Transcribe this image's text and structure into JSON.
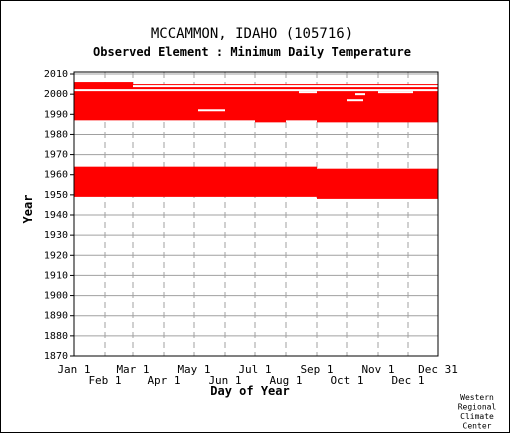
{
  "chart_data": {
    "type": "bar",
    "title": "MCCAMMON, IDAHO    (105716)",
    "subtitle": "Observed Element : Minimum Daily Temperature",
    "xlabel": "Day of Year",
    "ylabel": "Year",
    "ylim": [
      1870,
      2011
    ],
    "y_ticks": [
      1870,
      1880,
      1890,
      1900,
      1910,
      1920,
      1930,
      1940,
      1950,
      1960,
      1970,
      1980,
      1990,
      2000,
      2010
    ],
    "x_ticks_top_row": [
      {
        "label": "Jan 1",
        "day": 1
      },
      {
        "label": "Mar 1",
        "day": 60
      },
      {
        "label": "May 1",
        "day": 121
      },
      {
        "label": "Jul 1",
        "day": 182
      },
      {
        "label": "Sep 1",
        "day": 244
      },
      {
        "label": "Nov 1",
        "day": 305
      },
      {
        "label": "Dec 31",
        "day": 365
      }
    ],
    "x_ticks_bottom_row": [
      {
        "label": "Feb 1",
        "day": 32
      },
      {
        "label": "Apr 1",
        "day": 91
      },
      {
        "label": "Jun 1",
        "day": 152
      },
      {
        "label": "Aug 1",
        "day": 213
      },
      {
        "label": "Oct 1",
        "day": 274
      },
      {
        "label": "Dec 1",
        "day": 335
      }
    ],
    "grid": true,
    "data_color": "#ff0000",
    "coverage_segments": [
      {
        "start_day": 1,
        "end_day": 32,
        "from_year": 1987,
        "to_year": 2006
      },
      {
        "start_day": 32,
        "end_day": 60,
        "from_year": 1987,
        "to_year": 2006
      },
      {
        "start_day": 60,
        "end_day": 121,
        "from_year": 1987,
        "to_year": 2005
      },
      {
        "start_day": 121,
        "end_day": 152,
        "from_year": 1987,
        "to_year": 2005
      },
      {
        "start_day": 152,
        "end_day": 182,
        "from_year": 1987,
        "to_year": 2005
      },
      {
        "start_day": 182,
        "end_day": 213,
        "from_year": 1986,
        "to_year": 2005
      },
      {
        "start_day": 213,
        "end_day": 244,
        "from_year": 1987,
        "to_year": 2005
      },
      {
        "start_day": 244,
        "end_day": 274,
        "from_year": 1986,
        "to_year": 2005
      },
      {
        "start_day": 274,
        "end_day": 305,
        "from_year": 1986,
        "to_year": 2005
      },
      {
        "start_day": 305,
        "end_day": 335,
        "from_year": 1986,
        "to_year": 2005
      },
      {
        "start_day": 335,
        "end_day": 366,
        "from_year": 1986,
        "to_year": 2005
      },
      {
        "start_day": 1,
        "end_day": 244,
        "from_year": 1949,
        "to_year": 1964
      },
      {
        "start_day": 244,
        "end_day": 335,
        "from_year": 1948,
        "to_year": 1963
      },
      {
        "start_day": 335,
        "end_day": 366,
        "from_year": 1948,
        "to_year": 1963
      }
    ],
    "gaps": [
      {
        "start_day": 1,
        "end_day": 366,
        "year": 2002
      },
      {
        "start_day": 60,
        "end_day": 366,
        "year": 2004
      },
      {
        "start_day": 125,
        "end_day": 152,
        "year": 1992
      },
      {
        "start_day": 226,
        "end_day": 244,
        "year": 2001
      },
      {
        "start_day": 274,
        "end_day": 290,
        "year": 1997
      },
      {
        "start_day": 305,
        "end_day": 340,
        "year": 2001
      },
      {
        "start_day": 282,
        "end_day": 292,
        "year": 2000
      }
    ]
  },
  "credit": [
    "Western",
    "Regional",
    "Climate",
    "Center"
  ]
}
